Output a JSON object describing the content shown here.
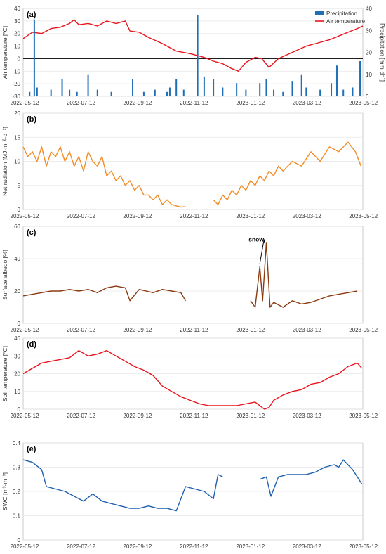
{
  "chart_data": [
    {
      "panel_label": "(a)",
      "type": "bar+line",
      "x_ticks": [
        "2022-05-12",
        "2022-07-12",
        "2022-09-12",
        "2022-11-12",
        "2023-01-12",
        "2023-03-12",
        "2023-05-12"
      ],
      "ylabel": "Air temperature [°C]",
      "y2label": "Precipitation [mm·d⁻¹]",
      "ylim": [
        -30,
        40
      ],
      "y_ticks": [
        -30,
        -20,
        -10,
        0,
        10,
        20,
        30,
        40
      ],
      "y2lim": [
        0,
        40
      ],
      "y2_ticks": [
        0,
        10,
        20,
        30,
        40
      ],
      "legend": [
        "Precipitation",
        "Air temperature"
      ],
      "legend_position": "top-right",
      "series": [
        {
          "name": "Air temperature",
          "axis": "left",
          "color": "#e8141c",
          "points": [
            [
              0,
              16
            ],
            [
              10,
              21
            ],
            [
              20,
              20
            ],
            [
              30,
              24
            ],
            [
              40,
              25
            ],
            [
              50,
              28
            ],
            [
              55,
              31
            ],
            [
              60,
              27
            ],
            [
              70,
              28
            ],
            [
              80,
              26
            ],
            [
              90,
              30
            ],
            [
              100,
              28
            ],
            [
              110,
              30
            ],
            [
              115,
              22
            ],
            [
              125,
              21
            ],
            [
              135,
              17
            ],
            [
              150,
              12
            ],
            [
              165,
              6
            ],
            [
              180,
              4
            ],
            [
              195,
              1
            ],
            [
              205,
              -2
            ],
            [
              215,
              -4
            ],
            [
              225,
              -8
            ],
            [
              232,
              -10
            ],
            [
              240,
              -3
            ],
            [
              250,
              1
            ],
            [
              257,
              0
            ],
            [
              265,
              -7
            ],
            [
              275,
              0
            ],
            [
              290,
              5
            ],
            [
              305,
              10
            ],
            [
              315,
              12
            ],
            [
              330,
              15
            ],
            [
              340,
              18
            ],
            [
              350,
              21
            ],
            [
              360,
              24
            ],
            [
              366,
              26
            ]
          ]
        },
        {
          "name": "Precipitation",
          "axis": "right",
          "color": "#1f6fb7",
          "type": "bar",
          "points": [
            [
              7,
              2
            ],
            [
              12,
              35
            ],
            [
              15,
              4
            ],
            [
              30,
              3
            ],
            [
              42,
              8
            ],
            [
              50,
              3
            ],
            [
              58,
              2
            ],
            [
              70,
              10
            ],
            [
              80,
              3
            ],
            [
              95,
              2
            ],
            [
              118,
              8
            ],
            [
              130,
              2
            ],
            [
              142,
              3
            ],
            [
              155,
              2
            ],
            [
              158,
              4
            ],
            [
              165,
              8
            ],
            [
              173,
              3
            ],
            [
              188,
              37
            ],
            [
              195,
              9
            ],
            [
              205,
              8
            ],
            [
              215,
              4
            ],
            [
              230,
              6
            ],
            [
              240,
              3
            ],
            [
              255,
              6
            ],
            [
              262,
              8
            ],
            [
              270,
              3
            ],
            [
              280,
              2
            ],
            [
              290,
              7
            ],
            [
              300,
              10
            ],
            [
              305,
              4
            ],
            [
              320,
              3
            ],
            [
              332,
              6
            ],
            [
              338,
              14
            ],
            [
              345,
              3
            ],
            [
              355,
              4
            ],
            [
              363,
              16
            ]
          ]
        }
      ]
    },
    {
      "panel_label": "(b)",
      "type": "line",
      "x_ticks": [
        "2022-05-12",
        "2022-07-12",
        "2022-09-12",
        "2022-11-12",
        "2023-01-12",
        "2023-03-12",
        "2023-05-12"
      ],
      "ylabel": "Net radiation [MJ·m⁻²·d⁻¹]",
      "ylim": [
        0,
        20
      ],
      "y_ticks": [
        0,
        5,
        10,
        15,
        20
      ],
      "series": [
        {
          "name": "Net radiation",
          "color": "#f28c28",
          "points": [
            [
              0,
              13
            ],
            [
              5,
              11
            ],
            [
              10,
              12
            ],
            [
              15,
              10
            ],
            [
              20,
              13
            ],
            [
              25,
              9
            ],
            [
              30,
              12
            ],
            [
              35,
              11
            ],
            [
              40,
              13
            ],
            [
              45,
              10
            ],
            [
              50,
              12
            ],
            [
              55,
              9
            ],
            [
              60,
              11
            ],
            [
              65,
              8
            ],
            [
              70,
              12
            ],
            [
              75,
              10
            ],
            [
              80,
              9
            ],
            [
              85,
              11
            ],
            [
              90,
              7
            ],
            [
              95,
              8
            ],
            [
              100,
              6
            ],
            [
              105,
              7
            ],
            [
              110,
              5
            ],
            [
              115,
              6
            ],
            [
              120,
              4
            ],
            [
              125,
              5
            ],
            [
              130,
              3
            ],
            [
              135,
              3
            ],
            [
              140,
              2
            ],
            [
              145,
              3
            ],
            [
              150,
              1
            ],
            [
              155,
              2
            ],
            [
              160,
              1
            ],
            [
              170,
              0.5
            ],
            [
              175,
              0.6
            ],
            null,
            [
              205,
              2
            ],
            [
              210,
              1
            ],
            [
              215,
              3
            ],
            [
              220,
              2
            ],
            [
              225,
              4
            ],
            [
              230,
              3
            ],
            [
              235,
              5
            ],
            [
              240,
              4
            ],
            [
              245,
              6
            ],
            [
              250,
              5
            ],
            [
              255,
              7
            ],
            [
              260,
              6
            ],
            [
              265,
              8
            ],
            [
              270,
              7
            ],
            [
              275,
              9
            ],
            [
              280,
              8
            ],
            [
              290,
              10
            ],
            [
              300,
              9
            ],
            [
              310,
              12
            ],
            [
              320,
              10
            ],
            [
              330,
              13
            ],
            [
              340,
              12
            ],
            [
              350,
              14
            ],
            [
              358,
              12
            ],
            [
              364,
              9
            ]
          ]
        }
      ]
    },
    {
      "panel_label": "(c)",
      "type": "line",
      "x_ticks": [
        "2022-05-12",
        "2022-07-12",
        "2022-09-12",
        "2022-11-12",
        "2023-01-12",
        "2023-03-12",
        "2023-05-12"
      ],
      "ylabel": "Surface albedo [%]",
      "ylim": [
        0,
        60
      ],
      "y_ticks": [
        0,
        20,
        40,
        60
      ],
      "annotation": "snow",
      "series": [
        {
          "name": "Surface albedo",
          "color": "#8b3a10",
          "points": [
            [
              0,
              17
            ],
            [
              10,
              18
            ],
            [
              20,
              19
            ],
            [
              30,
              20
            ],
            [
              40,
              20
            ],
            [
              50,
              21
            ],
            [
              60,
              20
            ],
            [
              70,
              21
            ],
            [
              80,
              19
            ],
            [
              90,
              22
            ],
            [
              100,
              23
            ],
            [
              110,
              22
            ],
            [
              115,
              14
            ],
            [
              125,
              21
            ],
            [
              140,
              19
            ],
            [
              150,
              21
            ],
            [
              160,
              20
            ],
            [
              170,
              19
            ],
            [
              175,
              14
            ],
            null,
            [
              245,
              14
            ],
            [
              250,
              10
            ],
            [
              255,
              35
            ],
            [
              258,
              14
            ],
            [
              262,
              50
            ],
            [
              266,
              10
            ],
            [
              270,
              13
            ],
            [
              280,
              10
            ],
            [
              290,
              14
            ],
            [
              300,
              12
            ],
            [
              310,
              13
            ],
            [
              320,
              15
            ],
            [
              330,
              17
            ],
            [
              340,
              18
            ],
            [
              350,
              19
            ],
            [
              360,
              20
            ]
          ]
        }
      ]
    },
    {
      "panel_label": "(d)",
      "type": "line",
      "x_ticks": [
        "2022-05-12",
        "2022-07-12",
        "2022-09-12",
        "2022-11-12",
        "2023-01-12",
        "2023-03-12",
        "2023-05-12"
      ],
      "ylabel": "Soil temperature [°C]",
      "ylim": [
        0,
        40
      ],
      "y_ticks": [
        0,
        10,
        20,
        30,
        40
      ],
      "series": [
        {
          "name": "Soil temperature",
          "color": "#e8141c",
          "points": [
            [
              0,
              20
            ],
            [
              10,
              23
            ],
            [
              20,
              26
            ],
            [
              30,
              27
            ],
            [
              40,
              28
            ],
            [
              50,
              29
            ],
            [
              60,
              33
            ],
            [
              70,
              30
            ],
            [
              80,
              31
            ],
            [
              90,
              33
            ],
            [
              100,
              30
            ],
            [
              110,
              27
            ],
            [
              120,
              24
            ],
            [
              130,
              22
            ],
            [
              140,
              19
            ],
            [
              150,
              13
            ],
            [
              160,
              10
            ],
            [
              170,
              7
            ],
            [
              180,
              5
            ],
            [
              190,
              3
            ],
            [
              200,
              2
            ],
            [
              210,
              2
            ],
            [
              220,
              2
            ],
            [
              230,
              2
            ],
            [
              240,
              3
            ],
            [
              250,
              4
            ],
            [
              255,
              2
            ],
            [
              260,
              0
            ],
            [
              265,
              1
            ],
            [
              270,
              5
            ],
            [
              280,
              8
            ],
            [
              290,
              10
            ],
            [
              300,
              11
            ],
            [
              310,
              14
            ],
            [
              320,
              15
            ],
            [
              330,
              18
            ],
            [
              340,
              20
            ],
            [
              350,
              24
            ],
            [
              360,
              26
            ],
            [
              365,
              23
            ]
          ]
        }
      ]
    },
    {
      "panel_label": "(e)",
      "type": "line",
      "x_ticks": [
        "2022-05-12",
        "2022-07-12",
        "2022-09-12",
        "2022-11-12",
        "2023-01-12",
        "2023-03-12",
        "2023-05-12"
      ],
      "ylabel": "SWC [m³·m⁻³]",
      "ylim": [
        0,
        0.4
      ],
      "y_ticks": [
        0,
        0.1,
        0.2,
        0.3,
        0.4
      ],
      "series": [
        {
          "name": "SWC",
          "color": "#1f5fb0",
          "points": [
            [
              0,
              0.33
            ],
            [
              10,
              0.32
            ],
            [
              20,
              0.29
            ],
            [
              25,
              0.22
            ],
            [
              35,
              0.21
            ],
            [
              45,
              0.2
            ],
            [
              55,
              0.18
            ],
            [
              65,
              0.16
            ],
            [
              75,
              0.19
            ],
            [
              85,
              0.16
            ],
            [
              95,
              0.15
            ],
            [
              105,
              0.14
            ],
            [
              115,
              0.13
            ],
            [
              125,
              0.13
            ],
            [
              135,
              0.14
            ],
            [
              145,
              0.13
            ],
            [
              155,
              0.13
            ],
            [
              165,
              0.12
            ],
            [
              175,
              0.22
            ],
            [
              185,
              0.21
            ],
            [
              195,
              0.2
            ],
            [
              205,
              0.17
            ],
            [
              210,
              0.27
            ],
            [
              215,
              0.26
            ],
            null,
            [
              255,
              0.25
            ],
            [
              262,
              0.26
            ],
            [
              267,
              0.18
            ],
            [
              275,
              0.26
            ],
            [
              285,
              0.27
            ],
            [
              295,
              0.27
            ],
            [
              305,
              0.27
            ],
            [
              315,
              0.28
            ],
            [
              325,
              0.3
            ],
            [
              335,
              0.31
            ],
            [
              340,
              0.3
            ],
            [
              345,
              0.33
            ],
            [
              355,
              0.29
            ],
            [
              365,
              0.23
            ]
          ]
        }
      ]
    }
  ]
}
